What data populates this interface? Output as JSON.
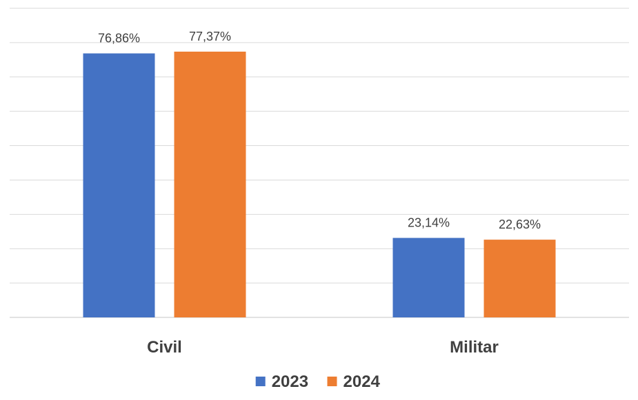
{
  "chart_data": {
    "type": "bar",
    "categories": [
      "Civil",
      "Militar"
    ],
    "series": [
      {
        "name": "2023",
        "values": [
          76.86,
          23.14
        ],
        "labels": [
          "76,86%",
          "23,14%"
        ],
        "color": "#4472C4"
      },
      {
        "name": "2024",
        "values": [
          77.37,
          22.63
        ],
        "labels": [
          "77,37%",
          "22,63%"
        ],
        "color": "#ED7D31"
      }
    ],
    "title": "",
    "xlabel": "",
    "ylabel": "",
    "ylim": [
      0,
      90
    ],
    "grid": true,
    "legend": "bottom"
  }
}
